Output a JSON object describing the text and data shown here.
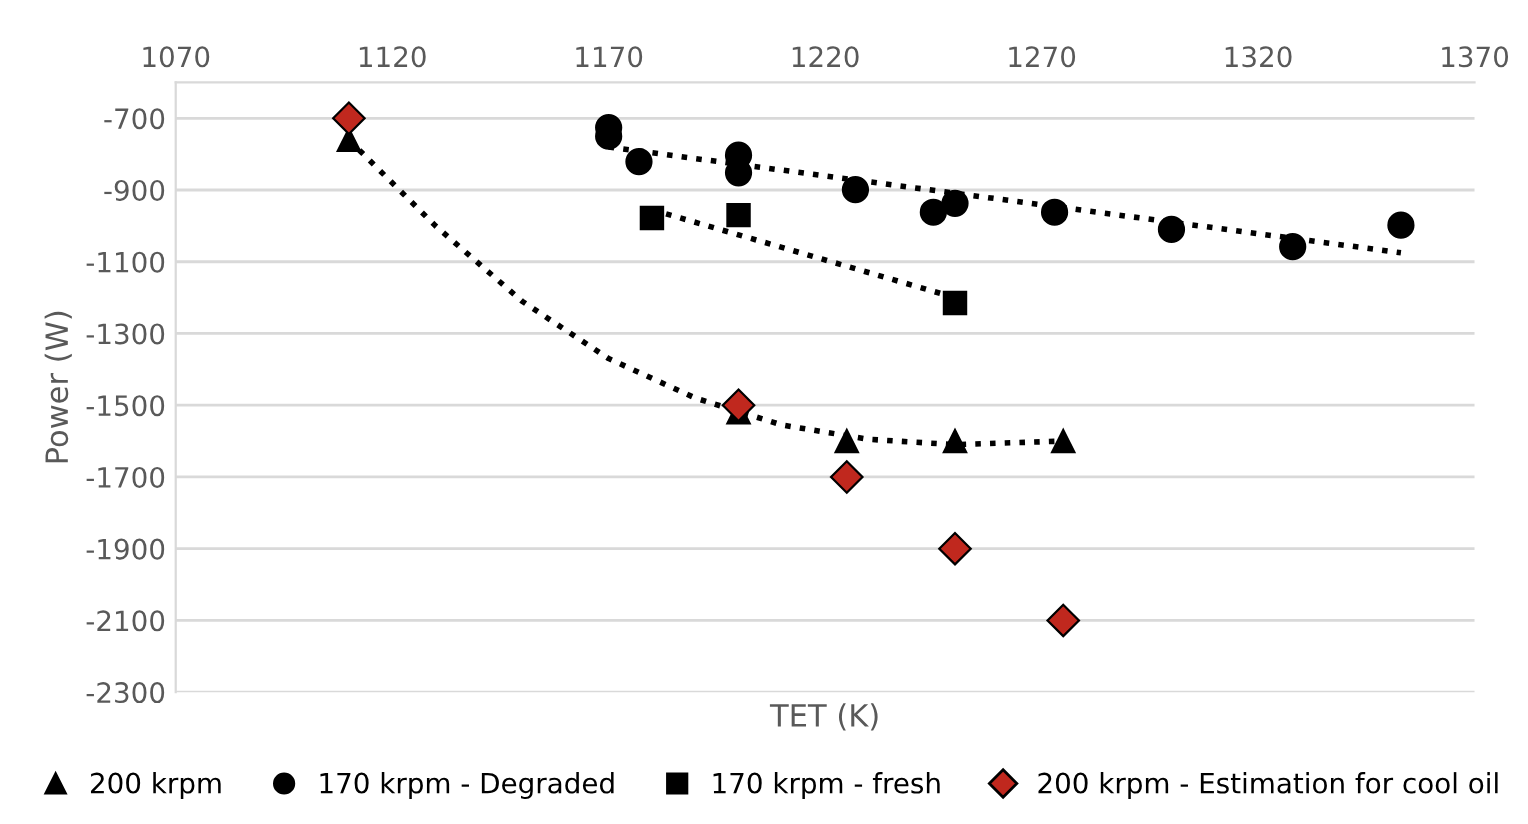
{
  "chart_data": {
    "type": "scatter",
    "xlabel": "TET (K)",
    "ylabel": "Power (W)",
    "xlim": [
      1070,
      1370
    ],
    "xticks": [
      1070,
      1120,
      1170,
      1220,
      1270,
      1320,
      1370
    ],
    "ylim": [
      -2300,
      -600
    ],
    "yticks": [
      -2300,
      -2100,
      -1900,
      -1700,
      -1500,
      -1300,
      -1100,
      -900,
      -700
    ],
    "grid": "y",
    "legend": "bottom",
    "series": [
      {
        "name": "200 krpm",
        "color": "#000000",
        "marker": "triangle",
        "x": [
          1110,
          1200,
          1225,
          1250,
          1275
        ],
        "values": [
          -760,
          -1520,
          -1600,
          -1600,
          -1600
        ]
      },
      {
        "name": "170 krpm - Degraded",
        "color": "#000000",
        "marker": "circle",
        "x": [
          1170,
          1170,
          1177,
          1200,
          1200,
          1227,
          1245,
          1250,
          1273,
          1300,
          1328,
          1353
        ],
        "values": [
          -726,
          -750,
          -821,
          -803,
          -852,
          -899,
          -962,
          -937,
          -962,
          -1010,
          -1058,
          -998
        ]
      },
      {
        "name": "170 krpm - fresh",
        "color": "#000000",
        "marker": "square",
        "x": [
          1180,
          1200,
          1250
        ],
        "values": [
          -978,
          -970,
          -1215
        ]
      },
      {
        "name": "200 krpm - Estimation for cool oil",
        "color": "#c0281e",
        "marker": "diamond",
        "x": [
          1110,
          1200,
          1225,
          1250,
          1275
        ],
        "values": [
          -700,
          -1500,
          -1700,
          -1900,
          -2100
        ]
      },
      {
        "type": "line",
        "color": "#000000",
        "line_style": "dotted",
        "marker": "none",
        "x": [
          1110,
          1130,
          1150,
          1170,
          1190,
          1210,
          1230,
          1250,
          1275
        ],
        "values": [
          -760,
          -1000,
          -1210,
          -1370,
          -1480,
          -1555,
          -1595,
          -1610,
          -1600
        ]
      },
      {
        "type": "line",
        "color": "#000000",
        "line_style": "dotted",
        "marker": "none",
        "x": [
          1170,
          1353
        ],
        "values": [
          -780,
          -1075
        ]
      },
      {
        "type": "line",
        "color": "#000000",
        "line_style": "dotted",
        "marker": "none",
        "x": [
          1180,
          1250
        ],
        "values": [
          -955,
          -1200
        ]
      }
    ]
  }
}
